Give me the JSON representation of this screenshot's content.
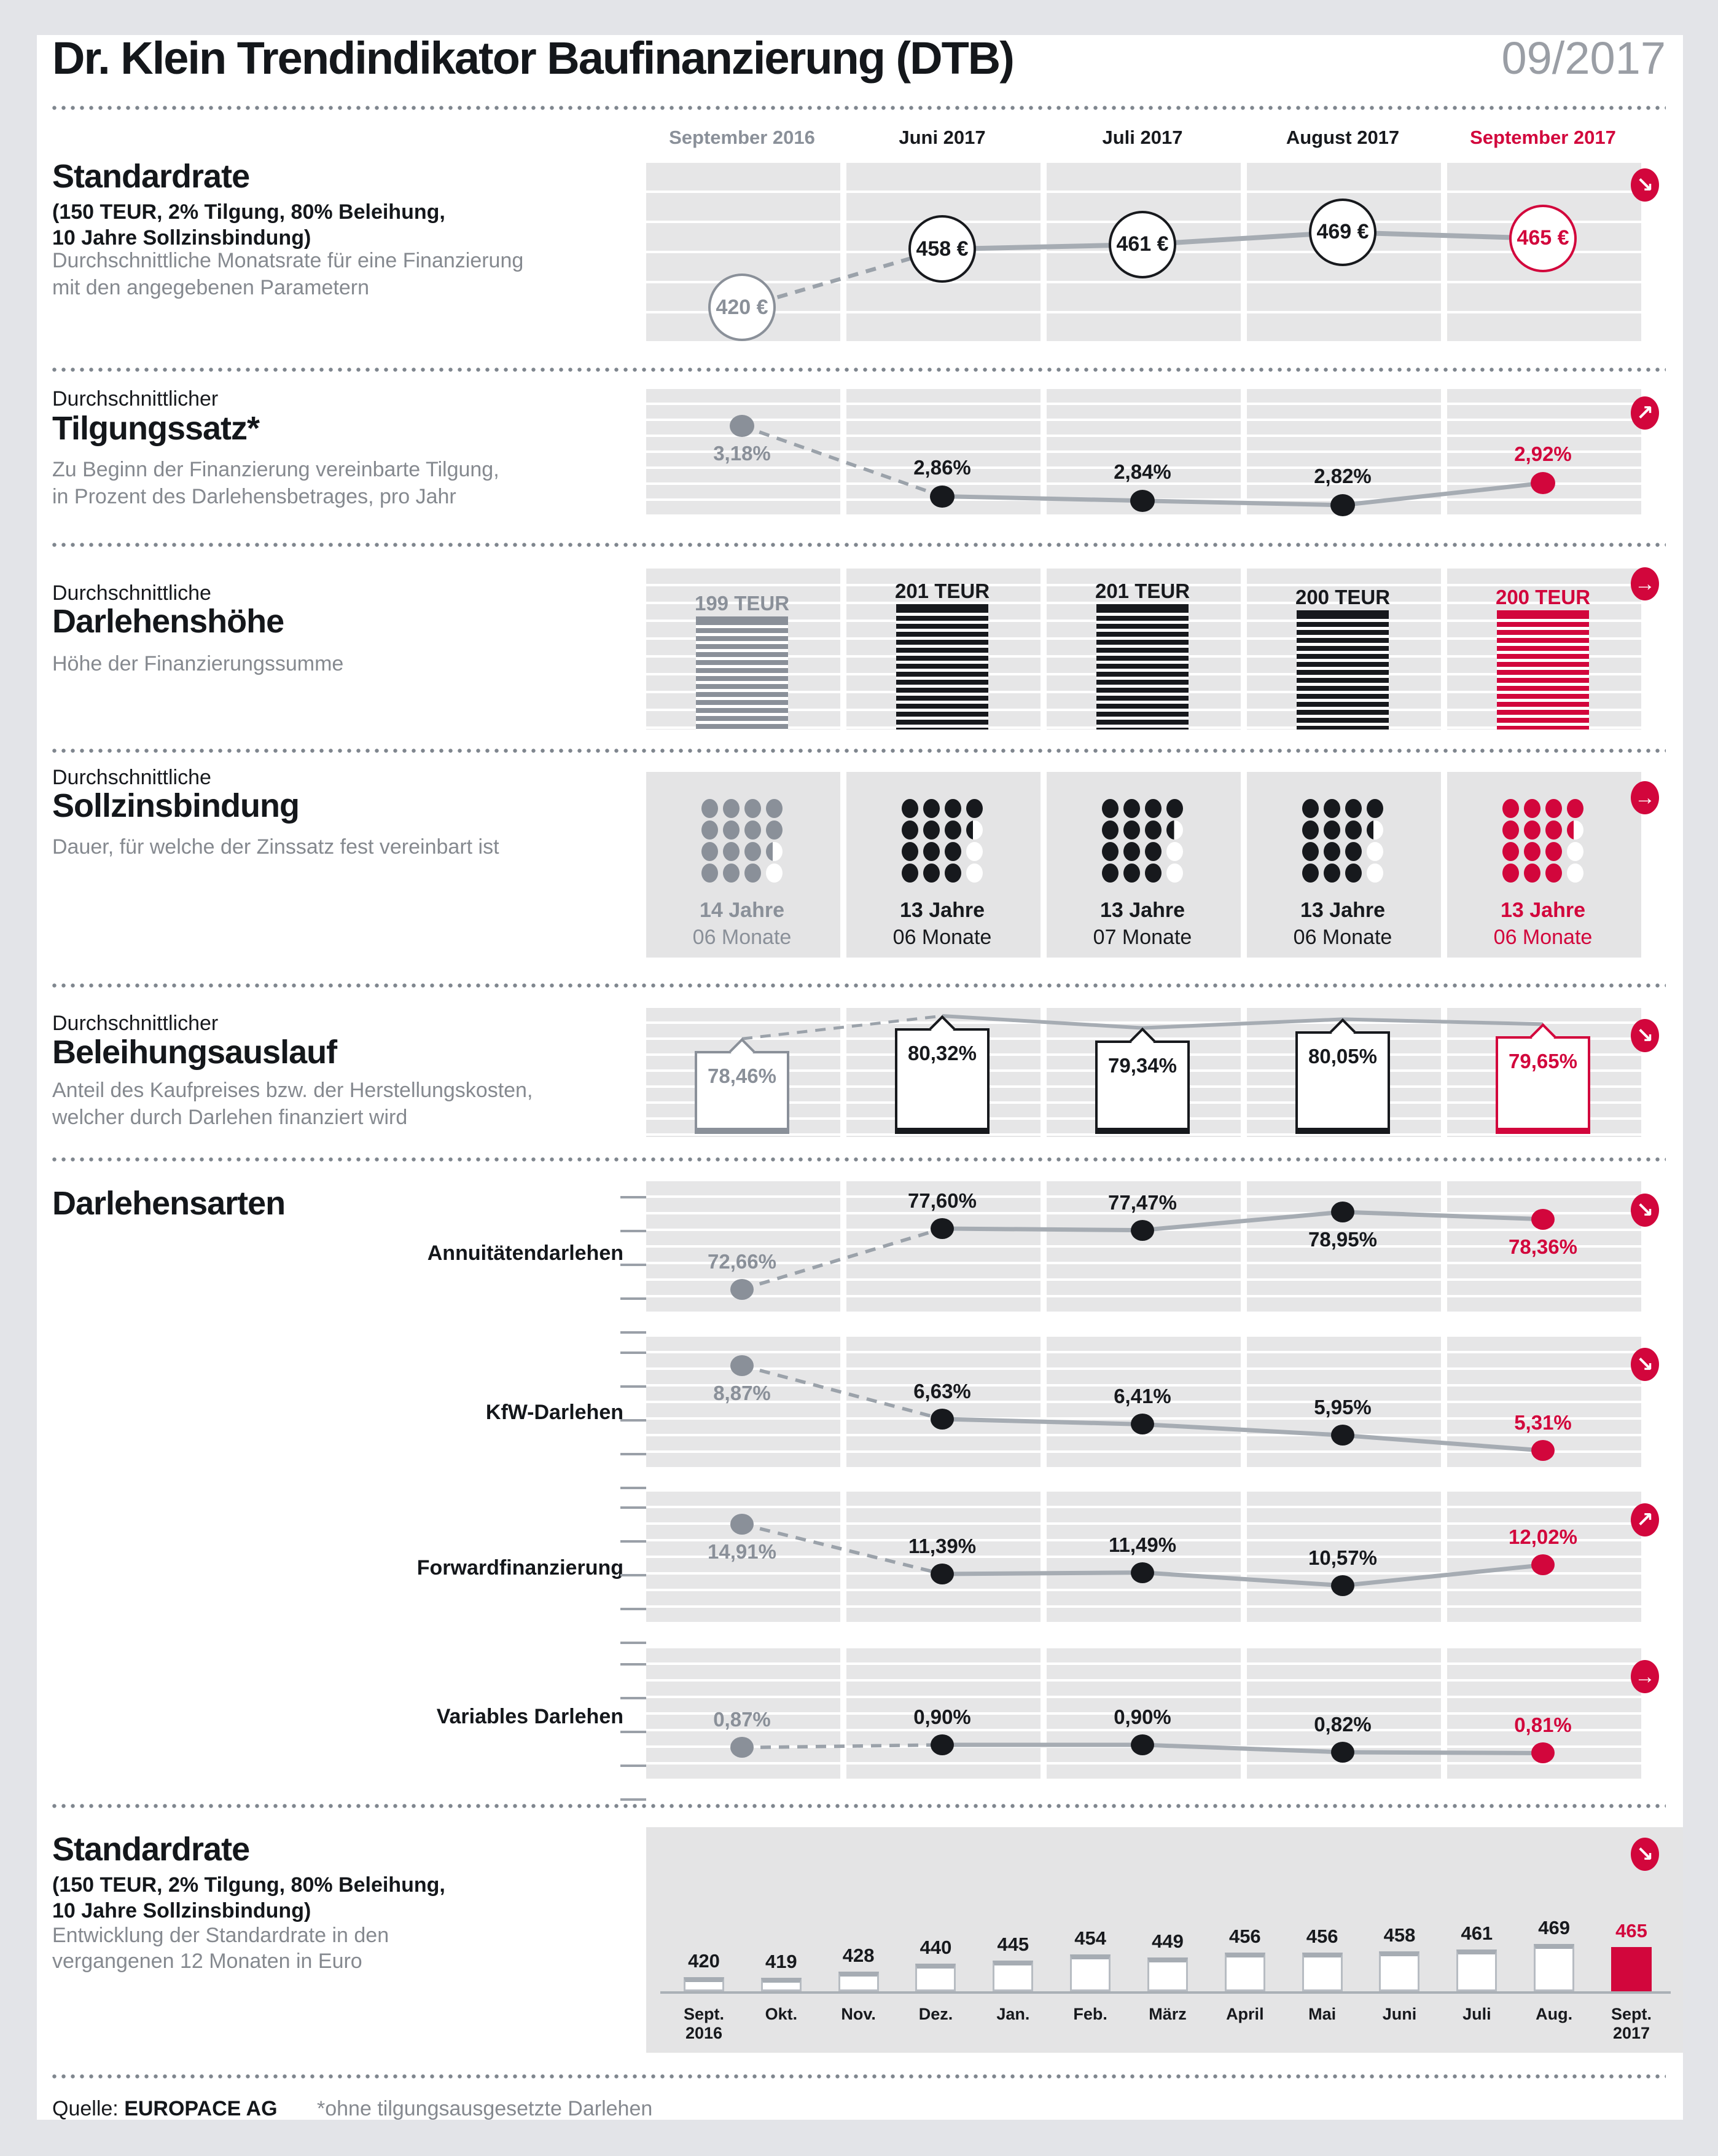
{
  "header": {
    "title": "Dr. Klein Trendindikator Baufinanzierung (DTB)",
    "period": "09/2017"
  },
  "columns": [
    {
      "label": "September 2016",
      "color": "#8a9099"
    },
    {
      "label": "Juni 2017",
      "color": "#17191d"
    },
    {
      "label": "Juli 2017",
      "color": "#17191d"
    },
    {
      "label": "August 2017",
      "color": "#17191d"
    },
    {
      "label": "September 2017",
      "color": "#d2063c"
    }
  ],
  "colors": {
    "red": "#d2063c",
    "black": "#17191d",
    "gray": "#8a9099",
    "line": "#a6acb3",
    "dash": "#9ba2aa",
    "stripe": "#e6e6e7",
    "block": "#e4e4e5",
    "tick": "#9aa0a8"
  },
  "sections": {
    "standardrate": {
      "heading": "Standardrate",
      "params": "(150 TEUR, 2% Tilgung, 80% Beleihung,\n10 Jahre Sollzinsbindung)",
      "desc": "Durchschnittliche Monatsrate für eine Finanzierung\nmit den angegebenen Parametern"
    },
    "tilgungssatz": {
      "pre": "Durchschnittlicher",
      "heading": "Tilgungssatz*",
      "desc": "Zu Beginn der Finanzierung vereinbarte Tilgung,\nin Prozent des Darlehensbetrages, pro Jahr"
    },
    "darlehenshoehe": {
      "pre": "Durchschnittliche",
      "heading": "Darlehenshöhe",
      "desc": "Höhe der Finanzierungssumme"
    },
    "sollzinsbindung": {
      "pre": "Durchschnittliche",
      "heading": "Sollzinsbindung",
      "desc": "Dauer, für welche der Zinssatz fest vereinbart ist"
    },
    "beleihungsauslauf": {
      "pre": "Durchschnittlicher",
      "heading": "Beleihungsauslauf",
      "desc": "Anteil des Kaufpreises bzw. der Herstellungskosten,\nwelcher durch Darlehen finanziert wird"
    },
    "darlehensarten": {
      "heading": "Darlehensarten",
      "rows": [
        "Annuitätendarlehen",
        "KfW-Darlehen",
        "Forwardfinanzierung",
        "Variables Darlehen"
      ]
    },
    "standardrate12": {
      "heading": "Standardrate",
      "params": "(150 TEUR, 2% Tilgung, 80% Beleihung,\n10 Jahre Sollzinsbindung)",
      "desc": "Entwicklung der Standardrate in den\nvergangenen 12 Monaten in Euro"
    }
  },
  "footer": {
    "source_label": "Quelle:",
    "source": "EUROPACE AG",
    "note": "*ohne tilgungsausgesetzte Darlehen"
  },
  "chart_data": [
    {
      "id": "standardrate_monthly",
      "type": "line",
      "title": "Standardrate",
      "x": [
        "September 2016",
        "Juni 2017",
        "Juli 2017",
        "August 2017",
        "September 2017"
      ],
      "values": [
        420,
        458,
        461,
        469,
        465
      ],
      "labels": [
        "420 €",
        "458 €",
        "461 €",
        "469 €",
        "465 €"
      ],
      "trend": "down"
    },
    {
      "id": "tilgungssatz",
      "type": "line",
      "title": "Durchschnittlicher Tilgungssatz",
      "x": [
        "September 2016",
        "Juni 2017",
        "Juli 2017",
        "August 2017",
        "September 2017"
      ],
      "values": [
        3.18,
        2.86,
        2.84,
        2.82,
        2.92
      ],
      "labels": [
        "3,18%",
        "2,86%",
        "2,84%",
        "2,82%",
        "2,92%"
      ],
      "trend": "up"
    },
    {
      "id": "darlehenshoehe",
      "type": "bar",
      "title": "Durchschnittliche Darlehenshöhe",
      "x": [
        "September 2016",
        "Juni 2017",
        "Juli 2017",
        "August 2017",
        "September 2017"
      ],
      "values": [
        199,
        201,
        201,
        200,
        200
      ],
      "labels": [
        "199 TEUR",
        "201 TEUR",
        "201 TEUR",
        "200 TEUR",
        "200 TEUR"
      ],
      "trend": "flat"
    },
    {
      "id": "sollzinsbindung",
      "type": "pictogram",
      "title": "Durchschnittliche Sollzinsbindung",
      "x": [
        "September 2016",
        "Juni 2017",
        "Juli 2017",
        "August 2017",
        "September 2017"
      ],
      "values": [
        {
          "jahre": 14,
          "monate": 6
        },
        {
          "jahre": 13,
          "monate": 6
        },
        {
          "jahre": 13,
          "monate": 7
        },
        {
          "jahre": 13,
          "monate": 6
        },
        {
          "jahre": 13,
          "monate": 6
        }
      ],
      "labels": [
        [
          "14 Jahre",
          "06 Monate"
        ],
        [
          "13 Jahre",
          "06 Monate"
        ],
        [
          "13 Jahre",
          "07 Monate"
        ],
        [
          "13 Jahre",
          "06 Monate"
        ],
        [
          "13 Jahre",
          "06 Monate"
        ]
      ],
      "dot_patterns": [
        [
          1,
          1,
          1,
          1,
          1,
          1,
          1,
          1,
          1,
          1,
          1,
          0.5,
          1,
          1,
          1,
          0
        ],
        [
          1,
          1,
          1,
          1,
          1,
          1,
          1,
          0.5,
          1,
          1,
          1,
          0,
          1,
          1,
          1,
          0
        ],
        [
          1,
          1,
          1,
          1,
          1,
          1,
          1,
          0.58,
          1,
          1,
          1,
          0,
          1,
          1,
          1,
          0
        ],
        [
          1,
          1,
          1,
          1,
          1,
          1,
          1,
          0.5,
          1,
          1,
          1,
          0,
          1,
          1,
          1,
          0
        ],
        [
          1,
          1,
          1,
          1,
          1,
          1,
          1,
          0.5,
          1,
          1,
          1,
          0,
          1,
          1,
          1,
          0
        ]
      ],
      "trend": "flat"
    },
    {
      "id": "beleihungsauslauf",
      "type": "line-tags",
      "title": "Durchschnittlicher Beleihungsauslauf",
      "x": [
        "September 2016",
        "Juni 2017",
        "Juli 2017",
        "August 2017",
        "September 2017"
      ],
      "values": [
        78.46,
        80.32,
        79.34,
        80.05,
        79.65
      ],
      "labels": [
        "78,46%",
        "80,32%",
        "79,34%",
        "80,05%",
        "79,65%"
      ],
      "trend": "down"
    },
    {
      "id": "darlehensarten",
      "type": "multi-line",
      "title": "Darlehensarten",
      "x": [
        "September 2016",
        "Juni 2017",
        "Juli 2017",
        "August 2017",
        "September 2017"
      ],
      "series": [
        {
          "name": "Annuitätendarlehen",
          "values": [
            72.66,
            77.6,
            77.47,
            78.95,
            78.36
          ],
          "labels": [
            "72,66%",
            "77,60%",
            "77,47%",
            "78,95%",
            "78,36%"
          ],
          "trend": "down"
        },
        {
          "name": "KfW-Darlehen",
          "values": [
            8.87,
            6.63,
            6.41,
            5.95,
            5.31
          ],
          "labels": [
            "8,87%",
            "6,63%",
            "6,41%",
            "5,95%",
            "5,31%"
          ],
          "trend": "down"
        },
        {
          "name": "Forwardfinanzierung",
          "values": [
            14.91,
            11.39,
            11.49,
            10.57,
            12.02
          ],
          "labels": [
            "14,91%",
            "11,39%",
            "11,49%",
            "10,57%",
            "12,02%"
          ],
          "trend": "up"
        },
        {
          "name": "Variables Darlehen",
          "values": [
            0.87,
            0.9,
            0.9,
            0.82,
            0.81
          ],
          "labels": [
            "0,87%",
            "0,90%",
            "0,90%",
            "0,82%",
            "0,81%"
          ],
          "trend": "flat"
        }
      ]
    },
    {
      "id": "standardrate_12m",
      "type": "bar",
      "title": "Standardrate – 12 Monate",
      "ylabel": "Euro",
      "x": [
        "Sept. 2016",
        "Okt.",
        "Nov.",
        "Dez.",
        "Jan.",
        "Feb.",
        "März",
        "April",
        "Mai",
        "Juni",
        "Juli",
        "Aug.",
        "Sept. 2017"
      ],
      "values": [
        420,
        419,
        428,
        440,
        445,
        454,
        449,
        456,
        456,
        458,
        461,
        469,
        465
      ],
      "labels": [
        "420",
        "419",
        "428",
        "440",
        "445",
        "454",
        "449",
        "456",
        "456",
        "458",
        "461",
        "469",
        "465"
      ],
      "trend": "down"
    }
  ]
}
